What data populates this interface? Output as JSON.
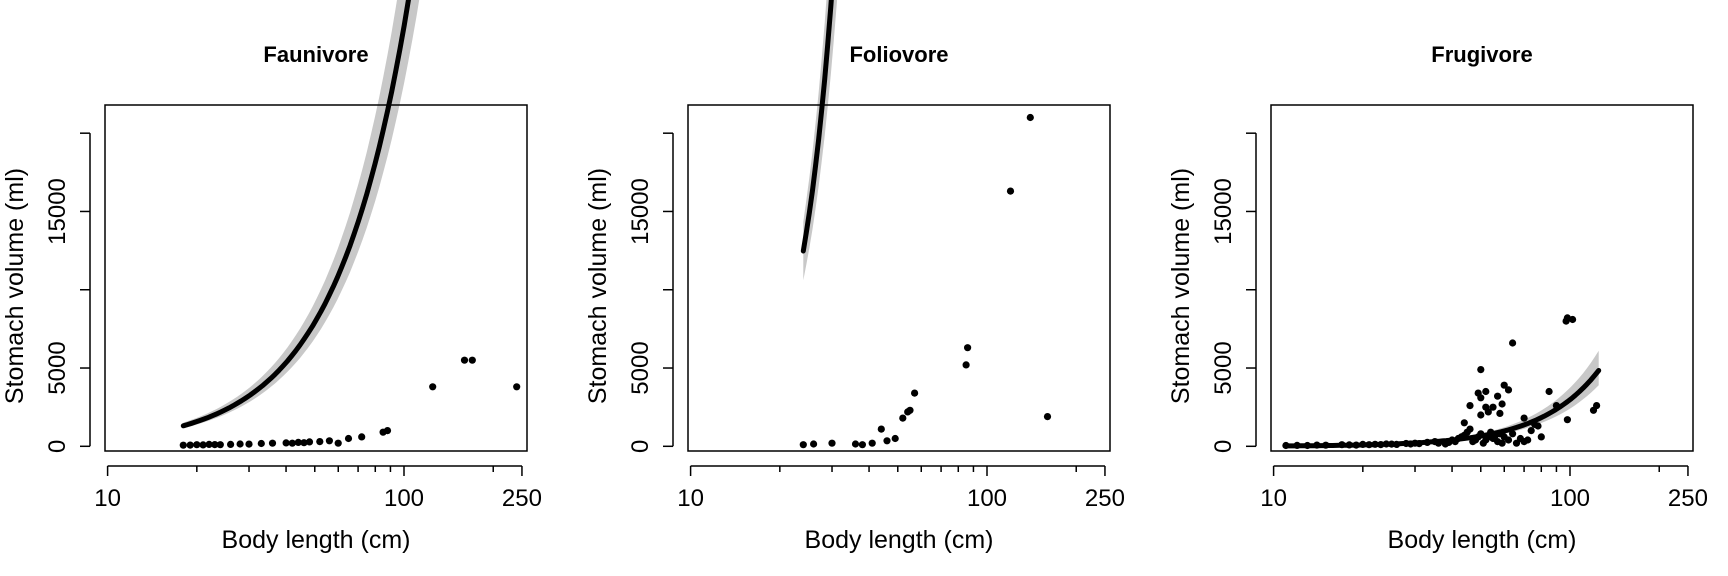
{
  "chart_data": [
    {
      "type": "scatter",
      "title": "Faunivore",
      "xlabel": "Body length (cm)",
      "ylabel": "Stomach volume (ml)",
      "x_scale": "log",
      "xlim": [
        9.8,
        260
      ],
      "ylim": [
        -300,
        21800
      ],
      "x_ticks": [
        10,
        20,
        30,
        40,
        50,
        60,
        70,
        80,
        90,
        100,
        200
      ],
      "x_tick_labels": [
        {
          "value": 10,
          "label": "10"
        },
        {
          "value": 100,
          "label": "100"
        },
        {
          "value": 250,
          "label": "250"
        }
      ],
      "y_ticks": [
        0,
        5000,
        10000,
        15000,
        20000
      ],
      "y_tick_labels": [
        {
          "value": 0,
          "label": "0"
        },
        {
          "value": 5000,
          "label": "5000"
        },
        {
          "value": 15000,
          "label": "15000"
        }
      ],
      "fit": {
        "x_range": [
          18,
          240
        ],
        "a": 8.1,
        "b": 1.76,
        "band_low": 0.88,
        "band_high": 1.15,
        "band_widen": 0.2
      },
      "points": [
        [
          18,
          70
        ],
        [
          19,
          80
        ],
        [
          20,
          100
        ],
        [
          21,
          90
        ],
        [
          22,
          120
        ],
        [
          23,
          110
        ],
        [
          24,
          100
        ],
        [
          26,
          120
        ],
        [
          28,
          150
        ],
        [
          30,
          140
        ],
        [
          33,
          180
        ],
        [
          36,
          200
        ],
        [
          40,
          220
        ],
        [
          42,
          200
        ],
        [
          44,
          250
        ],
        [
          46,
          230
        ],
        [
          48,
          280
        ],
        [
          52,
          300
        ],
        [
          56,
          350
        ],
        [
          60,
          200
        ],
        [
          65,
          500
        ],
        [
          72,
          600
        ],
        [
          85,
          900
        ],
        [
          88,
          1000
        ],
        [
          125,
          3800
        ],
        [
          160,
          5500
        ],
        [
          170,
          5500
        ],
        [
          240,
          3800
        ]
      ]
    },
    {
      "type": "scatter",
      "title": "Foliovore",
      "xlabel": "Body length (cm)",
      "ylabel": "Stomach volume (ml)",
      "x_scale": "log",
      "xlim": [
        9.8,
        260
      ],
      "ylim": [
        -300,
        21800
      ],
      "x_ticks": [
        10,
        20,
        30,
        40,
        50,
        60,
        70,
        80,
        90,
        100,
        200
      ],
      "x_tick_labels": [
        {
          "value": 10,
          "label": "10"
        },
        {
          "value": 100,
          "label": "100"
        },
        {
          "value": 250,
          "label": "250"
        }
      ],
      "y_ticks": [
        0,
        5000,
        10000,
        15000,
        20000
      ],
      "y_tick_labels": [
        {
          "value": 0,
          "label": "0"
        },
        {
          "value": 5000,
          "label": "5000"
        },
        {
          "value": 15000,
          "label": "15000"
        }
      ],
      "fit": {
        "x_range": [
          24,
          160
        ],
        "a": 0.071,
        "b": 3.8,
        "band_low": 0.85,
        "band_high": 1.15,
        "band_widen": 0.3
      },
      "points": [
        [
          24,
          100
        ],
        [
          26,
          150
        ],
        [
          30,
          200
        ],
        [
          36,
          150
        ],
        [
          38,
          100
        ],
        [
          41,
          200
        ],
        [
          44,
          1100
        ],
        [
          46,
          350
        ],
        [
          49,
          500
        ],
        [
          52,
          1800
        ],
        [
          54,
          2200
        ],
        [
          55,
          2300
        ],
        [
          57,
          3400
        ],
        [
          85,
          5200
        ],
        [
          86,
          6300
        ],
        [
          120,
          16300
        ],
        [
          140,
          21000
        ],
        [
          160,
          1900
        ]
      ]
    },
    {
      "type": "scatter",
      "title": "Frugivore",
      "xlabel": "Body length (cm)",
      "ylabel": "Stomach volume (ml)",
      "x_scale": "log",
      "xlim": [
        9.8,
        260
      ],
      "ylim": [
        -300,
        21800
      ],
      "x_ticks": [
        10,
        20,
        30,
        40,
        50,
        60,
        70,
        80,
        90,
        100,
        200
      ],
      "x_tick_labels": [
        {
          "value": 10,
          "label": "10"
        },
        {
          "value": 100,
          "label": "100"
        },
        {
          "value": 250,
          "label": "250"
        }
      ],
      "y_ticks": [
        0,
        5000,
        10000,
        15000,
        20000
      ],
      "y_tick_labels": [
        {
          "value": 0,
          "label": "0"
        },
        {
          "value": 5000,
          "label": "5000"
        },
        {
          "value": 15000,
          "label": "15000"
        }
      ],
      "fit": {
        "x_range": [
          11,
          125
        ],
        "a": 0.13,
        "b": 2.18,
        "band_low": 0.85,
        "band_high": 1.2,
        "band_widen": 0.3
      },
      "points": [
        [
          11,
          50
        ],
        [
          12,
          60
        ],
        [
          13,
          50
        ],
        [
          14,
          80
        ],
        [
          15,
          70
        ],
        [
          17,
          100
        ],
        [
          18,
          90
        ],
        [
          19,
          80
        ],
        [
          20,
          120
        ],
        [
          21,
          100
        ],
        [
          22,
          130
        ],
        [
          23,
          110
        ],
        [
          24,
          150
        ],
        [
          25,
          140
        ],
        [
          26,
          120
        ],
        [
          28,
          180
        ],
        [
          29,
          150
        ],
        [
          30,
          200
        ],
        [
          31,
          170
        ],
        [
          33,
          250
        ],
        [
          35,
          300
        ],
        [
          36,
          200
        ],
        [
          38,
          150
        ],
        [
          39,
          250
        ],
        [
          40,
          400
        ],
        [
          41,
          300
        ],
        [
          42,
          500
        ],
        [
          43,
          600
        ],
        [
          44,
          700
        ],
        [
          45,
          900
        ],
        [
          46,
          1100
        ],
        [
          47,
          300
        ],
        [
          48,
          400
        ],
        [
          49,
          600
        ],
        [
          50,
          800
        ],
        [
          51,
          200
        ],
        [
          52,
          400
        ],
        [
          53,
          600
        ],
        [
          54,
          900
        ],
        [
          55,
          500
        ],
        [
          56,
          700
        ],
        [
          57,
          300
        ],
        [
          58,
          800
        ],
        [
          59,
          200
        ],
        [
          60,
          600
        ],
        [
          62,
          400
        ],
        [
          64,
          800
        ],
        [
          66,
          200
        ],
        [
          68,
          500
        ],
        [
          70,
          300
        ],
        [
          74,
          1000
        ],
        [
          76,
          1400
        ],
        [
          80,
          600
        ],
        [
          72,
          400
        ],
        [
          46,
          2600
        ],
        [
          44,
          1500
        ],
        [
          50,
          3100
        ],
        [
          52,
          2500
        ],
        [
          55,
          2500
        ],
        [
          53,
          2200
        ],
        [
          49,
          3400
        ],
        [
          50,
          4900
        ],
        [
          52,
          3500
        ],
        [
          57,
          3200
        ],
        [
          59,
          2700
        ],
        [
          60,
          3900
        ],
        [
          62,
          3600
        ],
        [
          64,
          6600
        ],
        [
          50,
          2000
        ],
        [
          58,
          2100
        ],
        [
          70,
          1800
        ],
        [
          78,
          1300
        ],
        [
          85,
          3500
        ],
        [
          90,
          2600
        ],
        [
          98,
          1700
        ],
        [
          97,
          8000
        ],
        [
          98,
          8200
        ],
        [
          102,
          8100
        ],
        [
          120,
          2300
        ],
        [
          123,
          2600
        ]
      ]
    }
  ]
}
